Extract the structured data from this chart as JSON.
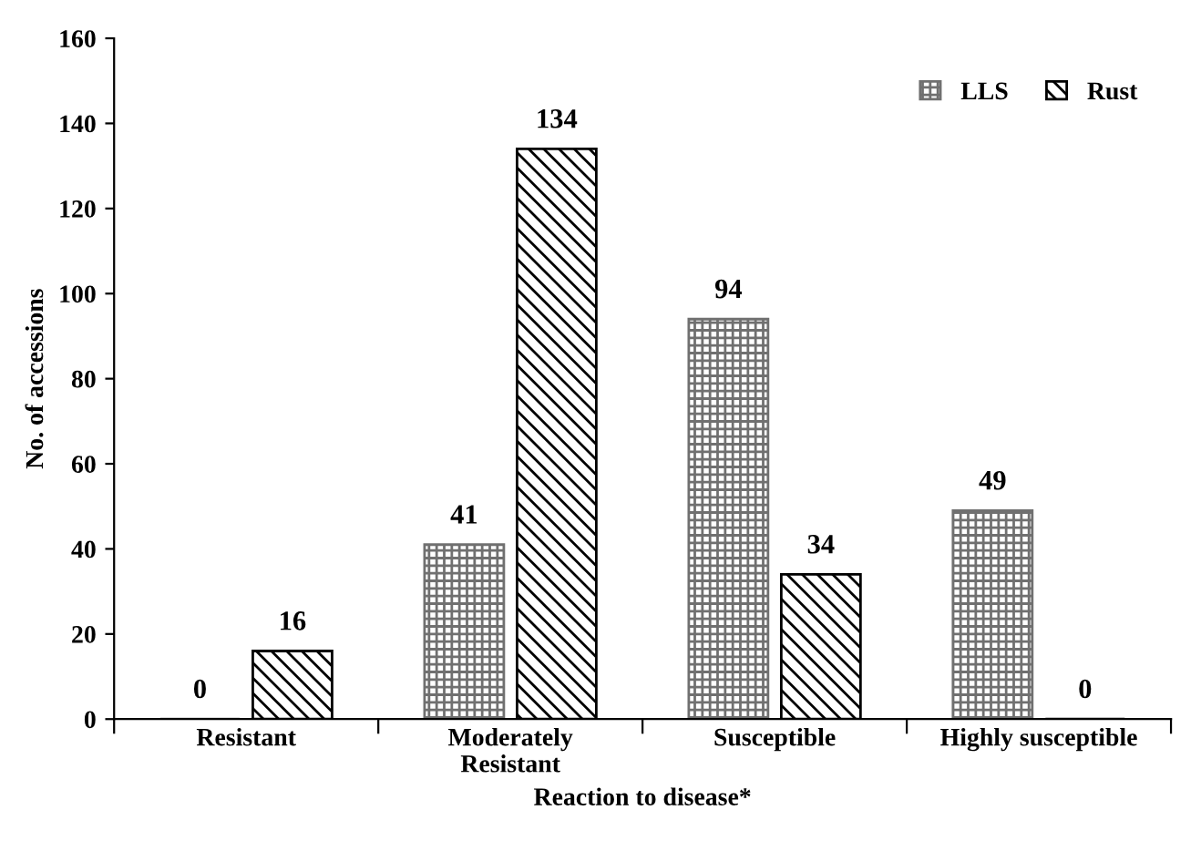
{
  "chart_data": {
    "type": "bar",
    "xlabel": "Reaction to disease*",
    "ylabel": "No. of accessions",
    "categories": [
      "Resistant",
      "Moderately\nResistant",
      "Susceptible",
      "Highly susceptible"
    ],
    "series": [
      {
        "name": "LLS",
        "color": "#707070",
        "values": [
          0,
          41,
          94,
          49
        ]
      },
      {
        "name": "Rust",
        "color": "#000000",
        "values": [
          16,
          134,
          34,
          0
        ]
      }
    ],
    "ylim": [
      0,
      160
    ],
    "yticks": [
      0,
      20,
      40,
      60,
      80,
      100,
      120,
      140,
      160
    ],
    "grid": false,
    "legend": "top right",
    "data_labels": true
  }
}
